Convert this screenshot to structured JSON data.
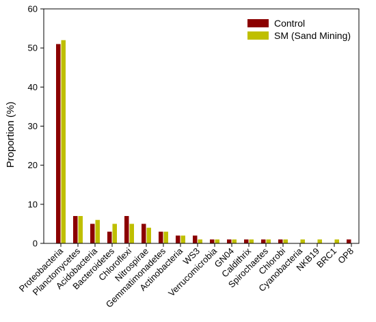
{
  "chart_data": {
    "type": "bar",
    "title": "",
    "xlabel": "",
    "ylabel": "Proportion (%)",
    "ylim": [
      0,
      60
    ],
    "yticks": [
      0,
      10,
      20,
      30,
      40,
      50,
      60
    ],
    "grid": false,
    "legend_position": "top-right",
    "categories": [
      "Proteobacteria",
      "Planctomycetes",
      "Acidobacteria",
      "Bacteroidetes",
      "Chloroflexi",
      "Nitrospirae",
      "Gemmatimonadetes",
      "Actinobacteria",
      "WS3",
      "Verrucomicrobia",
      "GN04",
      "Caldithrix",
      "Spirochaetes",
      "Chlorobi",
      "Cyanobacteria",
      "NKB19",
      "BRC1",
      "OP8"
    ],
    "series": [
      {
        "name": "Control",
        "color": "#8b0000",
        "values": [
          51,
          7,
          5,
          3,
          7,
          5,
          3,
          2,
          2,
          1,
          1,
          1,
          1,
          1,
          0,
          0,
          0,
          1
        ]
      },
      {
        "name": "SM (Sand Mining)",
        "color": "#bfbf00",
        "values": [
          52,
          7,
          6,
          5,
          5,
          4,
          3,
          2,
          1,
          1,
          1,
          1,
          1,
          1,
          1,
          1,
          1,
          0
        ]
      }
    ]
  }
}
